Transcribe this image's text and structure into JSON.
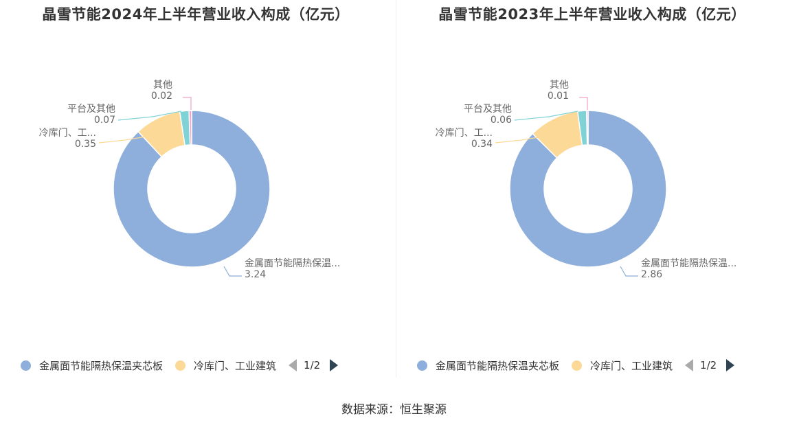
{
  "colors": {
    "slice_colors": [
      "#8eaedb",
      "#fcd996",
      "#7fd2d6",
      "#f0a3c8"
    ],
    "label_text": "#666666"
  },
  "chart_data": [
    {
      "type": "pie",
      "title": "晶雪节能2024年上半年营业收入构成（亿元）",
      "slices": [
        {
          "label": "金属面节能隔热保温...",
          "value": 3.24
        },
        {
          "label": "冷库门、工...",
          "value": 0.35
        },
        {
          "label": "平台及其他",
          "value": 0.07
        },
        {
          "label": "其他",
          "value": 0.02
        }
      ],
      "legend": {
        "items": [
          "金属面节能隔热保温夹芯板",
          "冷库门、工业建筑"
        ],
        "page": "1/2",
        "placement": "bottom"
      }
    },
    {
      "type": "pie",
      "title": "晶雪节能2023年上半年营业收入构成（亿元）",
      "slices": [
        {
          "label": "金属面节能隔热保温...",
          "value": 2.86
        },
        {
          "label": "冷库门、工...",
          "value": 0.34
        },
        {
          "label": "平台及其他",
          "value": 0.06
        },
        {
          "label": "其他",
          "value": 0.01
        }
      ],
      "legend": {
        "items": [
          "金属面节能隔热保温夹芯板",
          "冷库门、工业建筑"
        ],
        "page": "1/2",
        "placement": "bottom"
      }
    }
  ],
  "footer": {
    "source": "数据来源：恒生聚源"
  }
}
